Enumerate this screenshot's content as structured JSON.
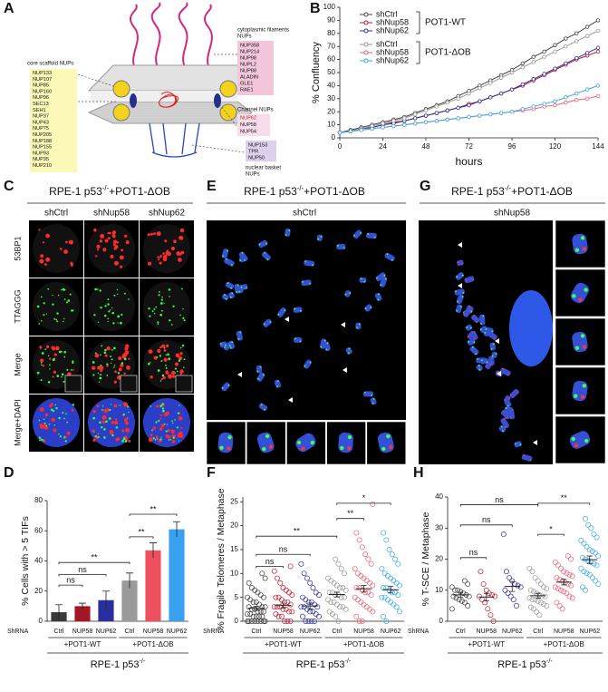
{
  "panel_labels": [
    "A",
    "B",
    "C",
    "D",
    "E",
    "F",
    "G",
    "H"
  ],
  "diagram": {
    "core_title": "core scaffold NUPs",
    "core": [
      "NUP133",
      "NUP107",
      "NUP85",
      "NUP160",
      "NUP96",
      "SEC13",
      "SEH1",
      "NUP37",
      "NUP43",
      "NUP75",
      "NUP205",
      "NUP188",
      "NUP155",
      "NUP93",
      "NUP35",
      "NUP210"
    ],
    "cytoplasmic_title": [
      "cytoplasmic filaments",
      "NUPs"
    ],
    "cytoplasmic": [
      "NUP358",
      "NUP214",
      "NUP98",
      "NUPL2",
      "NUP88",
      "ALADIN",
      "GLE1",
      "RAE1"
    ],
    "channel_title": "Channel NUPs",
    "channel": [
      "NUP62",
      "NUP58",
      "NUP54"
    ],
    "basket": [
      "NUP153",
      "TPR",
      "NUP50"
    ],
    "basket_title": [
      "nuclear basket",
      "NUPs"
    ]
  },
  "images": {
    "C": {
      "title": {
        "before": "RPE-1 p53",
        "sup": "-/-",
        "after": "+POT1-ΔOB"
      },
      "columns": [
        "shCtrl",
        "shNup58",
        "shNup62"
      ],
      "rows": [
        "53BP1",
        "TTAGGG",
        "Merge",
        "Merge+DAPI"
      ]
    },
    "E": {
      "title": {
        "before": "RPE-1 p53",
        "sup": "-/-",
        "after": "+POT1-ΔOB"
      },
      "label": "shCtrl"
    },
    "G": {
      "title": {
        "before": "RPE-1 p53",
        "sup": "-/-",
        "after": "+POT1-ΔOB"
      },
      "label": "shNup58"
    }
  },
  "chart_data": [
    {
      "type": "line",
      "xlabel": "hours",
      "ylabel": "% Confluency",
      "x": [
        0,
        6,
        12,
        18,
        24,
        30,
        36,
        42,
        48,
        54,
        60,
        66,
        72,
        78,
        84,
        90,
        96,
        102,
        108,
        114,
        120,
        126,
        132,
        138,
        144
      ],
      "xlim": [
        0,
        144
      ],
      "xticks": [
        0,
        24,
        48,
        72,
        96,
        120,
        144
      ],
      "ylim": [
        0,
        100
      ],
      "yticks": [
        0,
        10,
        20,
        30,
        40,
        50,
        60,
        70,
        80,
        90,
        100
      ],
      "legend_groups": [
        {
          "label": "POT1-WT",
          "series": [
            0,
            1,
            2
          ]
        },
        {
          "label": "POT1-ΔOB",
          "series": [
            3,
            4,
            5
          ]
        }
      ],
      "series": [
        {
          "name": "shCtrl",
          "color": "#444444",
          "values": [
            4,
            6,
            8,
            10,
            12,
            14,
            16,
            19,
            22,
            25,
            28,
            32,
            36,
            40,
            44,
            48,
            52,
            57,
            62,
            66,
            71,
            76,
            80,
            85,
            90
          ]
        },
        {
          "name": "shNup58",
          "color": "#c0182a",
          "values": [
            4,
            5,
            7,
            8,
            10,
            12,
            13,
            15,
            17,
            19,
            21,
            23,
            26,
            28,
            31,
            34,
            37,
            40,
            44,
            48,
            52,
            56,
            60,
            63,
            66
          ]
        },
        {
          "name": "shNup62",
          "color": "#2b2f9e",
          "values": [
            4,
            5,
            7,
            8,
            10,
            11,
            13,
            15,
            17,
            19,
            21,
            23,
            25,
            28,
            31,
            34,
            37,
            41,
            45,
            49,
            53,
            57,
            61,
            65,
            69
          ]
        },
        {
          "name": "shCtrl",
          "color": "#9a9a9a",
          "values": [
            4,
            5,
            7,
            9,
            11,
            13,
            15,
            18,
            21,
            24,
            27,
            30,
            34,
            38,
            42,
            46,
            50,
            54,
            58,
            62,
            66,
            70,
            74,
            78,
            82
          ]
        },
        {
          "name": "shNup58",
          "color": "#f06070",
          "values": [
            4,
            5,
            6,
            7,
            8,
            9,
            10,
            11,
            12,
            13,
            14,
            15,
            16,
            17,
            18,
            19,
            20,
            21,
            22,
            24,
            25,
            27,
            29,
            30,
            32
          ]
        },
        {
          "name": "shNup62",
          "color": "#3aa8e8",
          "values": [
            4,
            5,
            6,
            7,
            8,
            9,
            10,
            11,
            12,
            13,
            14,
            15,
            16,
            17,
            18,
            19,
            20,
            22,
            24,
            26,
            28,
            31,
            34,
            37,
            40
          ]
        }
      ]
    },
    {
      "type": "bar",
      "ylabel": "% Cells with > 5 TIFs",
      "row_label": "ShRNA",
      "categories": [
        "Ctrl",
        "NUP58",
        "NUP62",
        "Ctrl",
        "NUP58",
        "NUP62"
      ],
      "values": [
        6,
        10,
        14,
        27,
        47,
        61
      ],
      "errors": [
        5,
        2,
        6,
        5,
        5,
        5
      ],
      "colors": [
        "#3a3a3a",
        "#a31626",
        "#2b2f9e",
        "#9a9a9a",
        "#ee5060",
        "#3aa0f0"
      ],
      "ylim": [
        0,
        80
      ],
      "yticks": [
        0,
        20,
        40,
        60,
        80
      ],
      "groups": [
        {
          "label": "+POT1-WT",
          "from": 0,
          "to": 2
        },
        {
          "label": "+POT1-ΔOB",
          "from": 3,
          "to": 5
        }
      ],
      "footer": {
        "before": "RPE-1 p53",
        "sup": "-/-"
      },
      "annotations": [
        {
          "text": "ns",
          "from": 0,
          "to": 1,
          "y": 24
        },
        {
          "text": "ns",
          "from": 0,
          "to": 2,
          "y": 31
        },
        {
          "text": "**",
          "from": 0,
          "to": 3,
          "y": 39
        },
        {
          "text": "**",
          "from": 3,
          "to": 4,
          "y": 56
        },
        {
          "text": "**",
          "from": 3,
          "to": 5,
          "y": 71
        }
      ]
    },
    {
      "type": "strip",
      "ylabel": "% Fragile Telomeres / Metaphase",
      "row_label": "ShRNA",
      "categories": [
        "Ctrl",
        "NUP58",
        "NUP62",
        "Ctrl",
        "NUP58",
        "NUP62"
      ],
      "colors": [
        "#3a3a3a",
        "#c0182a",
        "#2b2f9e",
        "#9a9a9a",
        "#f06070",
        "#3aa8e8"
      ],
      "values": [
        [
          0,
          0,
          0,
          0,
          0,
          0,
          0,
          0,
          1,
          1,
          1,
          1,
          1.5,
          1.5,
          2,
          2,
          2,
          2.5,
          2.5,
          3,
          3,
          3,
          3.5,
          4,
          4,
          4.5,
          5,
          5,
          5.5,
          6,
          6.5,
          7,
          8,
          9,
          10
        ],
        [
          0,
          0,
          0,
          1,
          1,
          1.5,
          2,
          2,
          2.5,
          2.5,
          3,
          3,
          3,
          3.5,
          4,
          4,
          4.5,
          5,
          5,
          5.5,
          6,
          6.5,
          7,
          8,
          9,
          10.5,
          11.5
        ],
        [
          0,
          0,
          0,
          0,
          1,
          1,
          1.5,
          2,
          2,
          2.5,
          3,
          3,
          3,
          3.5,
          4,
          4,
          4.5,
          5,
          5.5,
          6,
          7,
          8,
          9,
          10,
          12
        ],
        [
          0,
          1,
          1.5,
          2,
          2.5,
          3,
          3,
          3.5,
          4,
          4,
          4.5,
          5,
          5,
          5.5,
          5.5,
          6,
          6,
          6.5,
          7,
          7,
          7.5,
          8,
          8.5,
          9,
          10,
          11,
          12,
          13
        ],
        [
          0,
          0,
          1,
          2,
          2.5,
          3,
          3.5,
          4,
          4.5,
          5,
          5.5,
          6,
          6,
          6.5,
          7,
          7,
          7.5,
          8,
          8.5,
          9,
          9.5,
          10,
          11,
          12,
          13,
          14,
          15.5,
          17,
          18.5,
          24.5
        ],
        [
          0,
          1,
          2,
          3,
          3.5,
          4,
          4.5,
          5,
          5,
          5.5,
          6,
          6,
          6.5,
          7,
          7,
          7.5,
          8,
          8.5,
          9,
          9.5,
          10,
          11,
          12,
          13,
          14,
          15,
          17,
          18.5
        ]
      ],
      "means": [
        2.7,
        3.3,
        3.2,
        5.6,
        6.8,
        6.6
      ],
      "errors": [
        0.4,
        0.5,
        0.6,
        0.5,
        0.7,
        0.7
      ],
      "ylim": [
        0,
        26
      ],
      "yticks": [
        0,
        5,
        10,
        15,
        20,
        25
      ],
      "groups": [
        {
          "label": "+POT1-WT",
          "from": 0,
          "to": 2
        },
        {
          "label": "+POT1-ΔOB",
          "from": 3,
          "to": 5
        }
      ],
      "footer": {
        "before": "RPE-1 p53",
        "sup": "-/-"
      },
      "annotations": [
        {
          "text": "ns",
          "from": 0,
          "to": 1,
          "y": 11.5
        },
        {
          "text": "ns",
          "from": 0,
          "to": 2,
          "y": 14
        },
        {
          "text": "**",
          "from": 0,
          "to": 3,
          "y": 17.8
        },
        {
          "text": "**",
          "from": 3,
          "to": 4,
          "y": 21.5
        },
        {
          "text": "*",
          "from": 3,
          "to": 5,
          "y": 24.7
        }
      ]
    },
    {
      "type": "strip",
      "ylabel": "% T-SCE / Metaphase",
      "row_label": "ShRNA",
      "categories": [
        "Ctrl",
        "NUP58",
        "NUP62",
        "Ctrl",
        "NUP58",
        "NUP62"
      ],
      "colors": [
        "#3a3a3a",
        "#c0182a",
        "#2b2f9e",
        "#9a9a9a",
        "#f06070",
        "#3aa8e8"
      ],
      "values": [
        [
          4,
          5,
          6,
          6.5,
          7,
          7.5,
          8,
          8,
          8.5,
          9,
          9.5,
          10,
          10,
          11,
          12,
          13
        ],
        [
          0,
          2,
          4,
          6,
          7,
          8,
          8,
          8.5,
          9,
          10,
          12,
          16
        ],
        [
          5,
          7,
          8,
          9,
          10,
          11,
          11.5,
          12,
          13,
          14,
          16,
          28
        ],
        [
          2,
          3,
          4,
          4.5,
          5,
          5.5,
          6,
          6.5,
          7,
          7,
          7.5,
          8,
          8,
          8.5,
          9,
          9.5,
          10,
          10.5,
          11,
          12,
          13,
          14,
          16,
          17
        ],
        [
          4,
          5,
          6,
          7.5,
          8,
          9,
          9.5,
          10,
          10.5,
          11,
          11.5,
          12,
          12.5,
          13,
          13.5,
          14,
          14.5,
          15,
          15.5,
          16,
          17,
          18,
          19,
          20,
          21
        ],
        [
          10,
          11,
          12,
          13,
          14,
          15,
          15.5,
          16,
          17,
          18,
          18.5,
          19,
          19.5,
          20,
          20.5,
          21,
          22,
          22.5,
          23,
          24,
          25,
          26,
          27,
          28,
          30,
          31,
          33
        ]
      ],
      "means": [
        8.5,
        7.8,
        11.2,
        8.2,
        12.6,
        19.8
      ],
      "errors": [
        0.8,
        1.2,
        1.6,
        0.8,
        0.9,
        1.2
      ],
      "ylim": [
        0,
        40
      ],
      "yticks": [
        0,
        10,
        20,
        30,
        40
      ],
      "groups": [
        {
          "label": "+POT1-WT",
          "from": 0,
          "to": 2
        },
        {
          "label": "+POT1-ΔOB",
          "from": 3,
          "to": 5
        }
      ],
      "footer": {
        "before": "RPE-1 p53",
        "sup": "-/-"
      },
      "annotations": [
        {
          "text": "ns",
          "from": 0,
          "to": 1,
          "y": 20.5
        },
        {
          "text": "ns",
          "from": 0,
          "to": 2,
          "y": 31
        },
        {
          "text": "ns",
          "from": 0,
          "to": 3,
          "y": 37.5
        },
        {
          "text": "*",
          "from": 3,
          "to": 4,
          "y": 28
        },
        {
          "text": "**",
          "from": 3,
          "to": 5,
          "y": 38
        }
      ]
    }
  ]
}
